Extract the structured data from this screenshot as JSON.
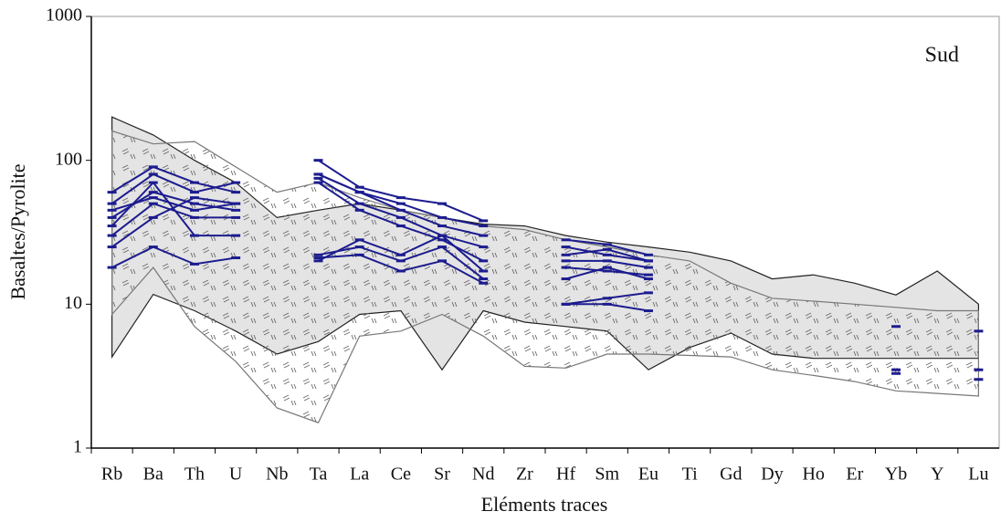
{
  "chart_data": {
    "type": "line",
    "annotation": "Sud",
    "y_label": "Basaltes/Pyrolite",
    "x_label": "Eléments traces",
    "log_y": true,
    "ylim": [
      1,
      1000
    ],
    "yticks": [
      1,
      10,
      100,
      1000
    ],
    "categories": [
      "Rb",
      "Ba",
      "Th",
      "U",
      "Nb",
      "Ta",
      "La",
      "Ce",
      "Sr",
      "Nd",
      "Zr",
      "Hf",
      "Sm",
      "Eu",
      "Ti",
      "Gd",
      "Dy",
      "Ho",
      "Er",
      "Yb",
      "Y",
      "Lu"
    ],
    "bands": [
      {
        "color": "#e4e4e4",
        "outline": "#222222",
        "pattern": false,
        "upper": [
          200,
          150,
          100,
          70,
          40,
          45,
          50,
          45,
          40,
          36,
          35,
          30,
          27,
          25,
          23,
          20,
          15,
          16,
          14,
          11.6,
          17,
          10
        ],
        "lower": [
          4.3,
          11.7,
          9,
          6.5,
          4.5,
          5.5,
          8.5,
          9,
          3.5,
          9,
          7.5,
          7,
          6.5,
          3.5,
          5,
          6.3,
          4.5,
          4.2,
          4.2,
          4.2,
          4.2,
          4.2
        ]
      },
      {
        "color": "#777777",
        "outline": "#777777",
        "pattern": true,
        "upper": [
          160,
          130,
          135,
          90,
          60,
          70,
          55,
          45,
          40,
          35,
          33,
          28,
          25,
          22,
          20,
          14,
          11,
          10.5,
          10,
          9.5,
          9,
          9
        ],
        "lower": [
          8.5,
          18,
          7,
          4,
          1.9,
          1.5,
          6,
          6.5,
          8.5,
          6,
          3.7,
          3.6,
          4.5,
          4.5,
          4.4,
          4.3,
          3.5,
          3.2,
          2.9,
          2.5,
          2.4,
          2.3
        ]
      }
    ],
    "series": [
      {
        "color": "#1c1c8f",
        "values": [
          50,
          80,
          60,
          70,
          null,
          100,
          65,
          55,
          50,
          38,
          null,
          28,
          26,
          22,
          null,
          null,
          null,
          null,
          null,
          null,
          null,
          null
        ]
      },
      {
        "color": "#1c1c8f",
        "values": [
          40,
          60,
          50,
          45,
          null,
          80,
          60,
          45,
          35,
          30,
          null,
          22,
          24,
          20,
          null,
          null,
          null,
          null,
          null,
          null,
          null,
          null
        ]
      },
      {
        "color": "#1c1c8f",
        "values": [
          30,
          50,
          40,
          40,
          null,
          75,
          50,
          40,
          30,
          25,
          null,
          20,
          20,
          18,
          null,
          null,
          null,
          null,
          null,
          null,
          null,
          null
        ]
      },
      {
        "color": "#1c1c8f",
        "values": [
          25,
          40,
          55,
          50,
          null,
          70,
          45,
          35,
          28,
          20,
          null,
          18,
          17,
          16,
          null,
          null,
          null,
          null,
          null,
          null,
          null,
          null
        ]
      },
      {
        "color": "#1c1c8f",
        "values": [
          60,
          90,
          70,
          60,
          null,
          20,
          28,
          22,
          30,
          17,
          null,
          15,
          18,
          15,
          null,
          null,
          null,
          null,
          null,
          null,
          null,
          null
        ]
      },
      {
        "color": "#1c1c8f",
        "values": [
          35,
          70,
          30,
          30,
          null,
          22,
          25,
          20,
          25,
          15,
          null,
          10,
          11,
          12,
          null,
          null,
          null,
          null,
          null,
          3.5,
          null,
          3.5
        ]
      },
      {
        "color": "#1c1c8f",
        "values": [
          18,
          25,
          19,
          21,
          null,
          21,
          22,
          17,
          20,
          14,
          null,
          10,
          10,
          9,
          null,
          null,
          null,
          null,
          null,
          3.3,
          null,
          3
        ]
      },
      {
        "color": "#1c1c8f",
        "values": [
          45,
          55,
          45,
          50,
          null,
          80,
          60,
          50,
          40,
          35,
          null,
          25,
          22,
          20,
          null,
          null,
          null,
          null,
          null,
          7,
          null,
          6.5
        ]
      }
    ]
  }
}
